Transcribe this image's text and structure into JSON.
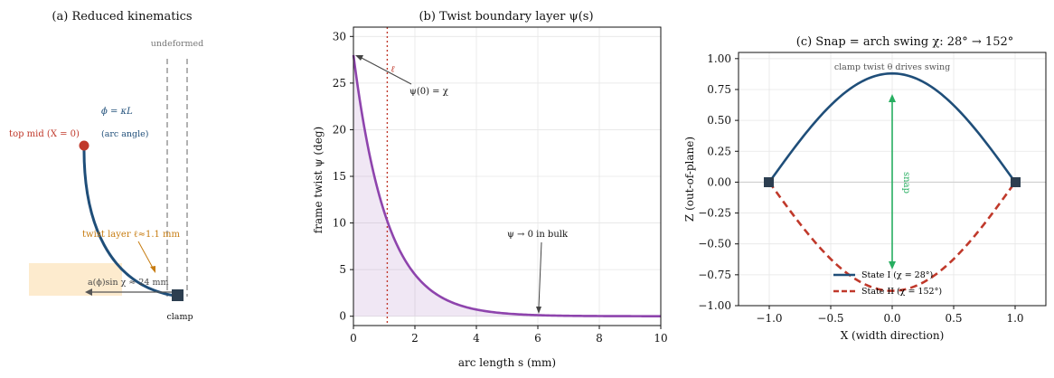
{
  "chart_data": [
    {
      "type": "diagram",
      "title": "(a) Reduced kinematics",
      "labels": {
        "undeformed": "undeformed",
        "phi": "ϕ = κL",
        "arc_angle": "(arc angle)",
        "top_mid": "top mid (X = 0)",
        "twist_layer": "twist layer ℓ≈1.1 mm",
        "shift": "a(ϕ)sin χ ≈ 24 mm",
        "clamp": "clamp"
      }
    },
    {
      "type": "line",
      "title": "(b) Twist boundary layer ψ(s)",
      "xlabel": "arc length s (mm)",
      "ylabel": "frame twist ψ (deg)",
      "xlim": [
        0,
        10
      ],
      "ylim": [
        -1,
        31
      ],
      "x_ticks": [
        "0",
        "2",
        "4",
        "6",
        "8",
        "10"
      ],
      "y_ticks": [
        "0",
        "5",
        "10",
        "15",
        "20",
        "25",
        "30"
      ],
      "series": [
        {
          "x": [
            0,
            0.5,
            1,
            1.5,
            2,
            2.5,
            3,
            3.5,
            4,
            4.5,
            5,
            6,
            7,
            8,
            9,
            10
          ],
          "values": [
            28.0,
            17.7,
            11.2,
            7.1,
            4.5,
            2.8,
            1.8,
            1.1,
            0.7,
            0.45,
            0.3,
            0.12,
            0.05,
            0.02,
            0.01,
            0.0
          ],
          "color": "#8e44ad"
        }
      ],
      "vline": {
        "x": 1.1,
        "label": "ℓ",
        "color": "#c0392b"
      },
      "annotations": {
        "psi0": "ψ(0) = χ",
        "bulk": "ψ → 0 in bulk"
      }
    },
    {
      "type": "line",
      "title": "(c) Snap = arch swing χ: 28° → 152°",
      "xlabel": "X (width direction)",
      "ylabel": "Z (out-of-plane)",
      "xlim": [
        -1.25,
        1.25
      ],
      "ylim": [
        -1.0,
        1.05
      ],
      "x_ticks": [
        "−1.0",
        "−0.5",
        "0.0",
        "0.5",
        "1.0"
      ],
      "y_ticks": [
        "−1.00",
        "−0.75",
        "−0.50",
        "−0.25",
        "0.00",
        "0.25",
        "0.50",
        "0.75",
        "1.00"
      ],
      "series": [
        {
          "name": "State I  (χ = 28°)",
          "x": [
            -1,
            -0.5,
            0,
            0.5,
            1
          ],
          "values": [
            0,
            0.62,
            0.88,
            0.62,
            0
          ],
          "color": "#1f4e79",
          "dash": "solid"
        },
        {
          "name": "State II (χ = 152°)",
          "x": [
            -1,
            -0.5,
            0,
            0.5,
            1
          ],
          "values": [
            0,
            -0.62,
            -0.88,
            -0.62,
            0
          ],
          "color": "#c0392b",
          "dash": "dashed"
        }
      ],
      "annotations": {
        "clamp_twist": "clamp twist θ drives swing",
        "snap": "snap"
      },
      "legend": "lower-center"
    }
  ]
}
